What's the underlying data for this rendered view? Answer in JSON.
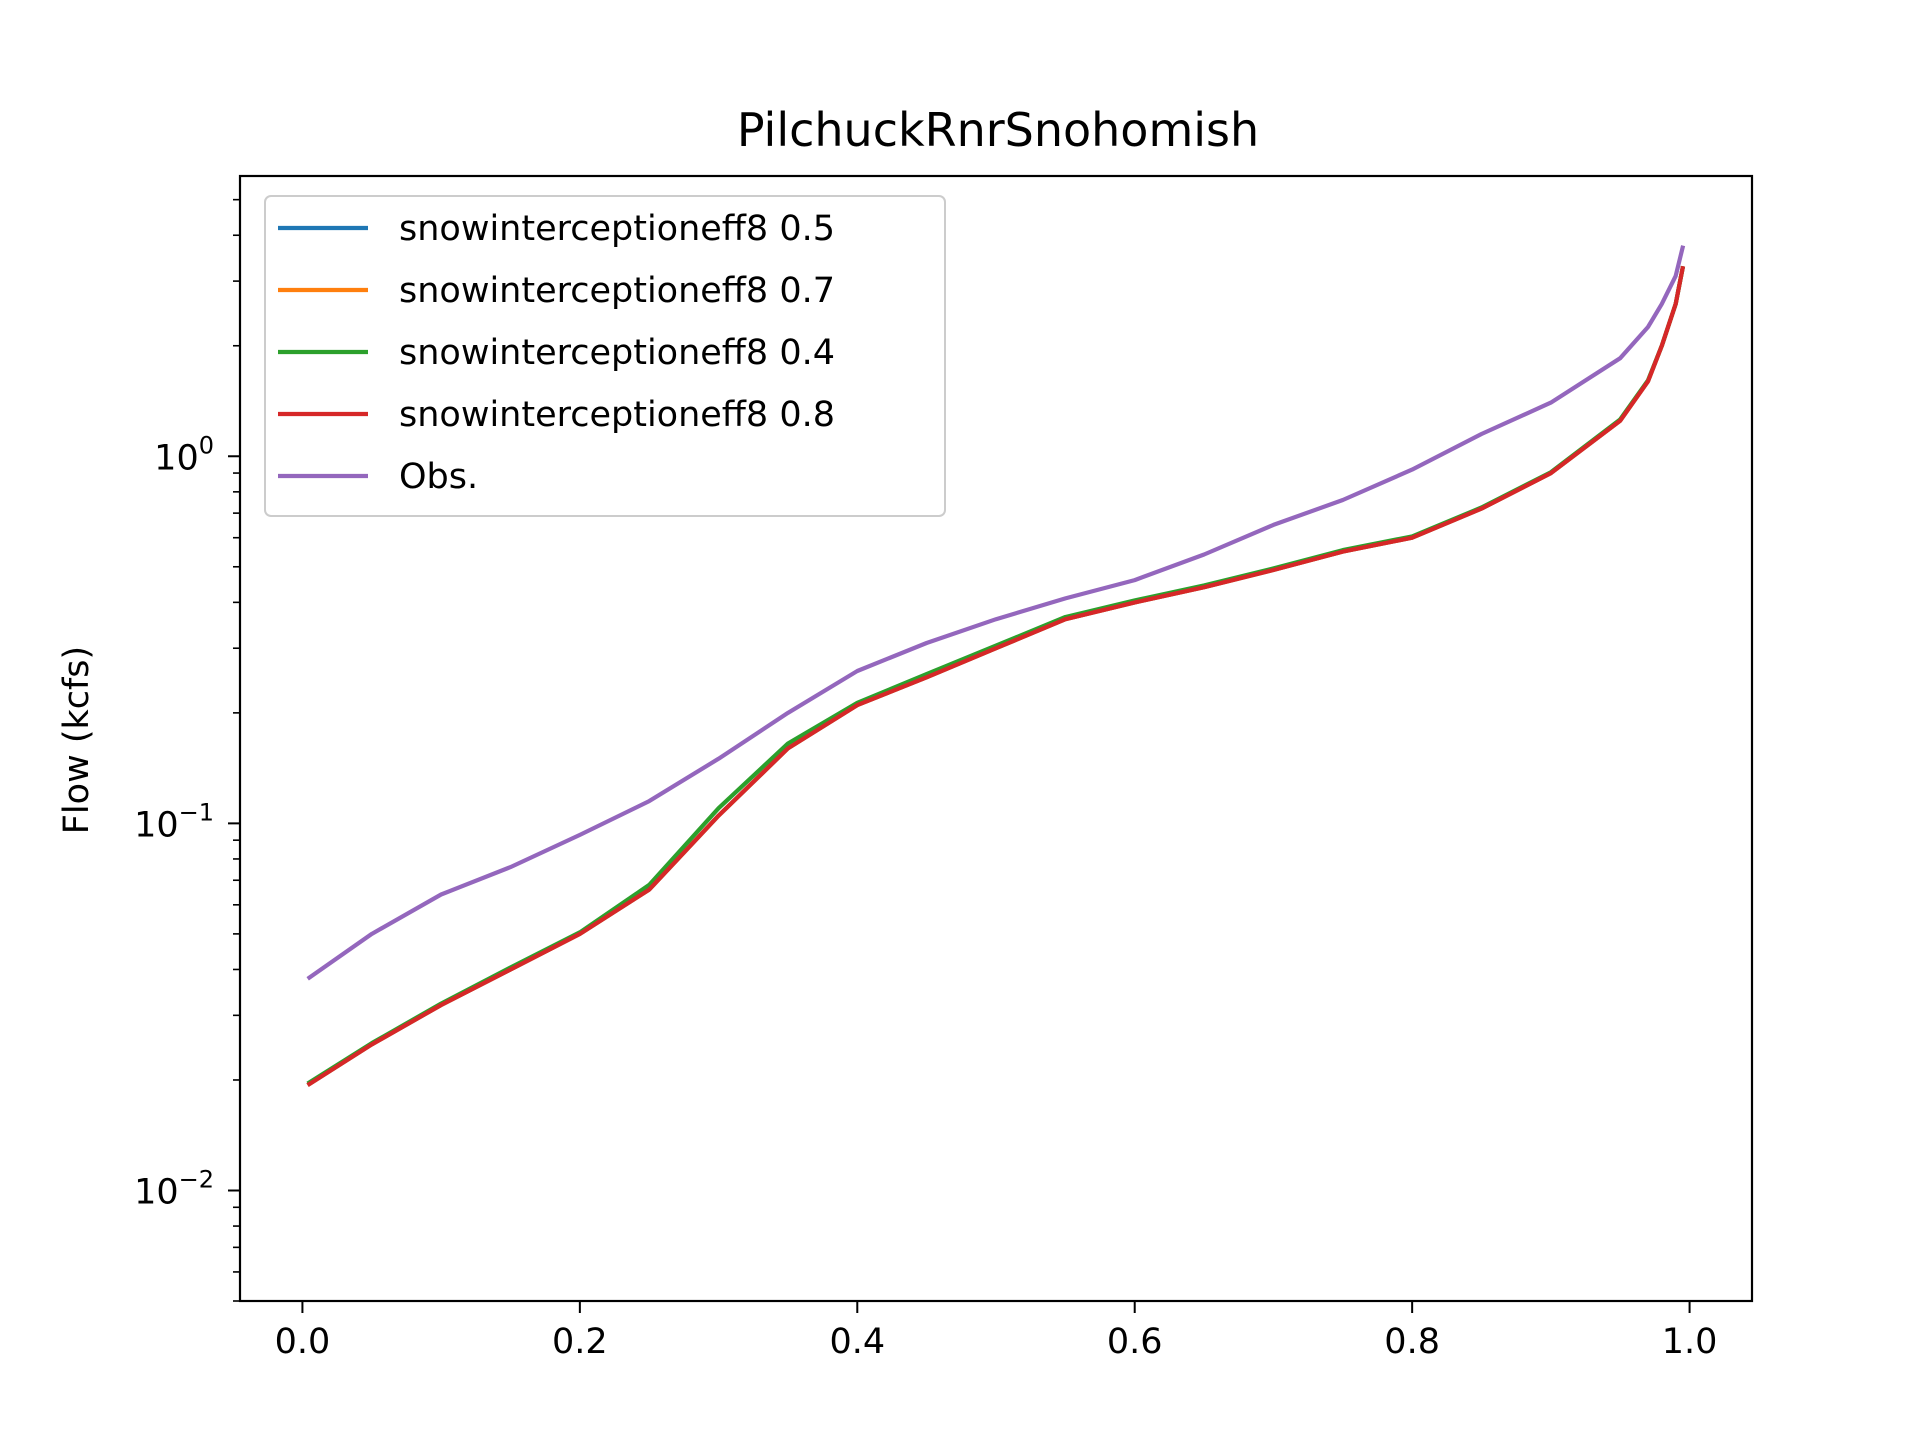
{
  "chart_data": {
    "type": "line",
    "title": "PilchuckRnrSnohomish",
    "xlabel": "",
    "ylabel": "Flow (kcfs)",
    "yscale": "log",
    "xlim": [
      -0.045,
      1.045
    ],
    "ylim": [
      0.005,
      5.8
    ],
    "grid": false,
    "legend_position": "upper left",
    "xticks": [
      0.0,
      0.2,
      0.4,
      0.6,
      0.8,
      1.0
    ],
    "xtick_labels": [
      "0.0",
      "0.2",
      "0.4",
      "0.6",
      "0.8",
      "1.0"
    ],
    "yticks": [
      0.01,
      0.1,
      1
    ],
    "ytick_labels": [
      {
        "base": "10",
        "exp": "−2"
      },
      {
        "base": "10",
        "exp": "−1"
      },
      {
        "base": "10",
        "exp": "0"
      }
    ],
    "x": [
      0.005,
      0.05,
      0.1,
      0.15,
      0.2,
      0.25,
      0.3,
      0.35,
      0.4,
      0.45,
      0.5,
      0.55,
      0.6,
      0.65,
      0.7,
      0.75,
      0.8,
      0.85,
      0.9,
      0.95,
      0.97,
      0.98,
      0.99,
      0.995
    ],
    "series": [
      {
        "name": "snowinterceptioneff8 0.5",
        "color": "#1f77b4",
        "values": [
          0.0195,
          0.025,
          0.032,
          0.04,
          0.05,
          0.066,
          0.105,
          0.16,
          0.21,
          0.25,
          0.3,
          0.36,
          0.4,
          0.44,
          0.49,
          0.55,
          0.6,
          0.72,
          0.9,
          1.25,
          1.6,
          2.0,
          2.6,
          3.25
        ]
      },
      {
        "name": "snowinterceptioneff8 0.7",
        "color": "#ff7f0e",
        "values": [
          0.0195,
          0.025,
          0.032,
          0.04,
          0.05,
          0.066,
          0.105,
          0.16,
          0.21,
          0.25,
          0.3,
          0.36,
          0.4,
          0.44,
          0.49,
          0.55,
          0.6,
          0.72,
          0.9,
          1.25,
          1.6,
          2.0,
          2.6,
          3.25
        ]
      },
      {
        "name": "snowinterceptioneff8 0.4",
        "color": "#2ca02c",
        "values": [
          0.0197,
          0.0252,
          0.0323,
          0.0405,
          0.0505,
          0.068,
          0.11,
          0.165,
          0.213,
          0.255,
          0.305,
          0.365,
          0.405,
          0.445,
          0.495,
          0.555,
          0.605,
          0.725,
          0.905,
          1.26,
          1.61,
          2.0,
          2.6,
          3.25
        ]
      },
      {
        "name": "snowinterceptioneff8 0.8",
        "color": "#d62728",
        "values": [
          0.0195,
          0.025,
          0.032,
          0.04,
          0.05,
          0.066,
          0.105,
          0.16,
          0.21,
          0.25,
          0.3,
          0.36,
          0.4,
          0.44,
          0.49,
          0.55,
          0.6,
          0.72,
          0.9,
          1.25,
          1.6,
          2.0,
          2.6,
          3.25
        ]
      },
      {
        "name": "Obs.",
        "color": "#9467bd",
        "values": [
          0.038,
          0.05,
          0.064,
          0.076,
          0.093,
          0.115,
          0.15,
          0.2,
          0.26,
          0.31,
          0.36,
          0.41,
          0.46,
          0.54,
          0.65,
          0.76,
          0.92,
          1.15,
          1.4,
          1.85,
          2.25,
          2.6,
          3.1,
          3.7
        ]
      }
    ]
  }
}
